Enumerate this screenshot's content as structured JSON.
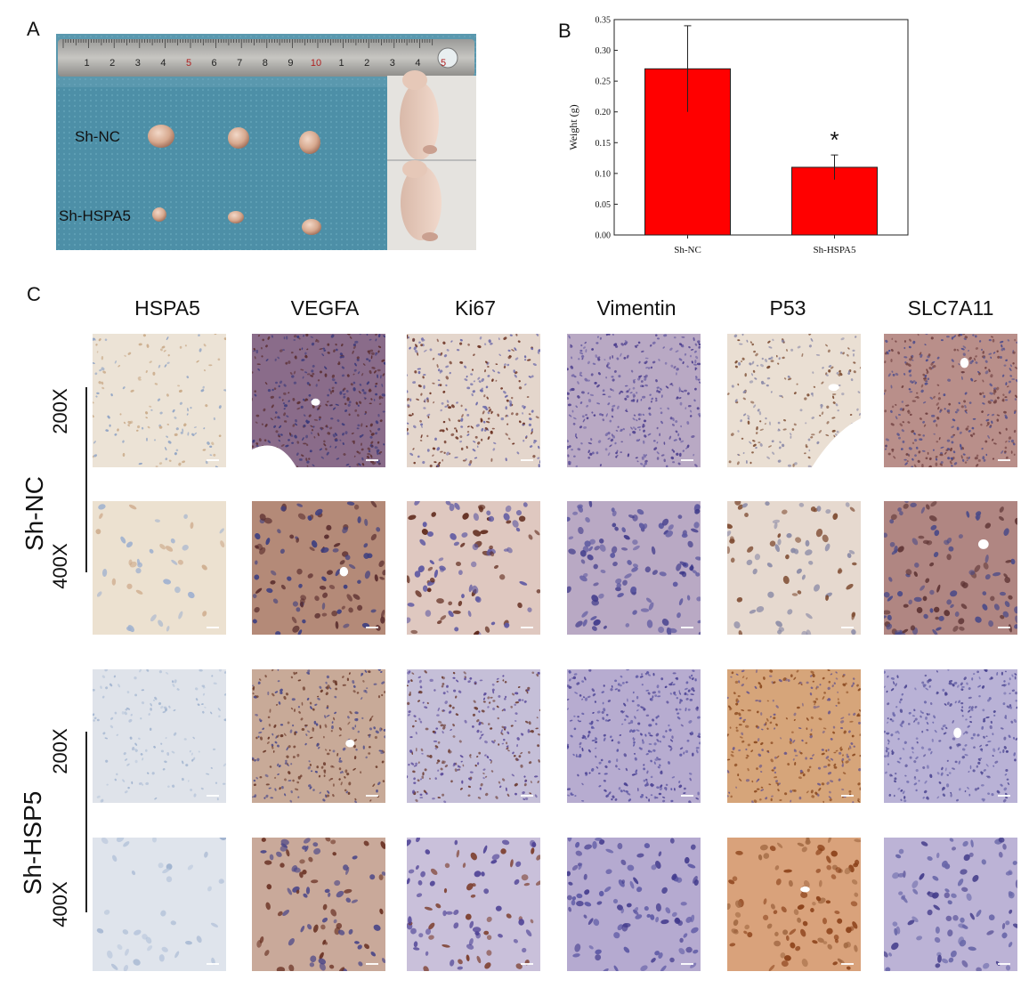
{
  "panel_labels": {
    "a": "A",
    "b": "B",
    "c": "C"
  },
  "panel_a": {
    "ruler_numbers": [
      "1",
      "2",
      "3",
      "4",
      "5",
      "6",
      "7",
      "8",
      "9",
      "10",
      "1",
      "2",
      "3",
      "4",
      "5"
    ],
    "row_labels": [
      "Sh-NC",
      "Sh-HSPA5"
    ]
  },
  "chart_data": {
    "type": "bar",
    "categories": [
      "Sh-NC",
      "Sh-HSPA5"
    ],
    "values": [
      0.27,
      0.11
    ],
    "errors": [
      0.07,
      0.02
    ],
    "ylabel": "Weight (g)",
    "ylim": [
      0,
      0.35
    ],
    "yticks": [
      "0.00",
      "0.05",
      "0.10",
      "0.15",
      "0.20",
      "0.25",
      "0.30",
      "0.35"
    ],
    "annotations": [
      {
        "category": "Sh-HSPA5",
        "text": "*"
      }
    ],
    "bar_color": "#ff0000"
  },
  "panel_c": {
    "columns": [
      "HSPA5",
      "VEGFA",
      "Ki67",
      "Vimentin",
      "P53",
      "SLC7A11"
    ],
    "groups": [
      {
        "label": "Sh-NC",
        "magnifications": [
          "200X",
          "400X"
        ]
      },
      {
        "label": "Sh-HSP5",
        "magnifications": [
          "200X",
          "400X"
        ]
      }
    ],
    "stain_colors": {
      "light_brown": "#d9c3a8",
      "dark_brown": "#6b3a2a",
      "purple": "#4a3c8c",
      "blue_light": "#b8c6da"
    }
  }
}
